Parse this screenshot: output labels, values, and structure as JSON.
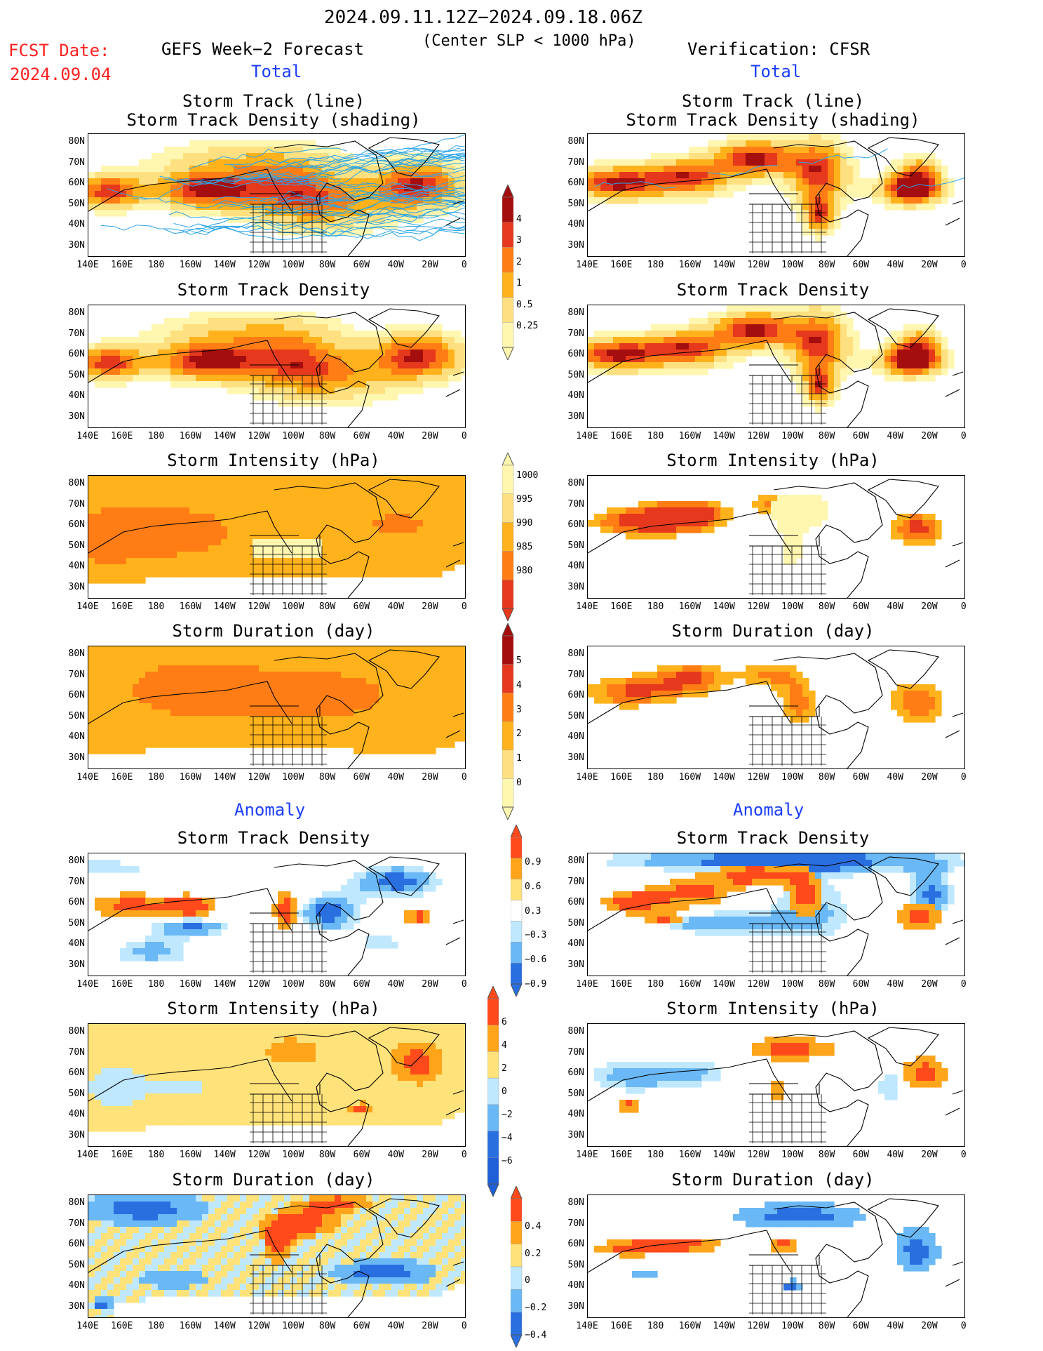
{
  "header": {
    "title": "2024.09.11.12Z−2024.09.18.06Z",
    "subtitle": "(Center SLP < 1000 hPa)",
    "fcst_label": "FCST Date:",
    "fcst_date": "2024.09.04",
    "left_model": "GEFS Week−2 Forecast",
    "right_model": "Verification: CFSR"
  },
  "sections": {
    "total": "Total",
    "anomaly": "Anomaly"
  },
  "panel_titles": {
    "track_1": "Storm Track (line)",
    "track_2": "Storm Track Density (shading)",
    "density": "Storm Track Density",
    "intensity": "Storm Intensity (hPa)",
    "duration": "Storm Duration (day)"
  },
  "axes": {
    "lat": [
      "80N",
      "70N",
      "60N",
      "50N",
      "40N",
      "30N"
    ],
    "lon": [
      "140E",
      "160E",
      "180",
      "160W",
      "140W",
      "120W",
      "100W",
      "80W",
      "60W",
      "40W",
      "20W",
      "0"
    ]
  },
  "colorbars": {
    "density_total": [
      "4",
      "3",
      "2",
      "1",
      "0.5",
      "0.25"
    ],
    "intensity_total": [
      "1000",
      "995",
      "990",
      "985",
      "980"
    ],
    "duration_total": [
      "5",
      "4",
      "3",
      "2",
      "1",
      "0"
    ],
    "density_anom": [
      "0.9",
      "0.6",
      "0.3",
      "−0.3",
      "−0.6",
      "−0.9"
    ],
    "intensity_anom": [
      "6",
      "4",
      "2",
      "0",
      "−2",
      "−4",
      "−6"
    ],
    "duration_anom": [
      "0.4",
      "0.2",
      "0",
      "−0.2",
      "−0.4"
    ]
  },
  "colors": {
    "total_scale": [
      "#fff6b0",
      "#ffe080",
      "#ffb21c",
      "#ff7d14",
      "#e5381c",
      "#a50e0e"
    ],
    "anom_pos": [
      "#ffe27a",
      "#ffa51c",
      "#ff4a1c"
    ],
    "anom_neg": [
      "#bfe8ff",
      "#6ab8f5",
      "#2a6fe0"
    ],
    "track_line": "#2aa4e6"
  }
}
